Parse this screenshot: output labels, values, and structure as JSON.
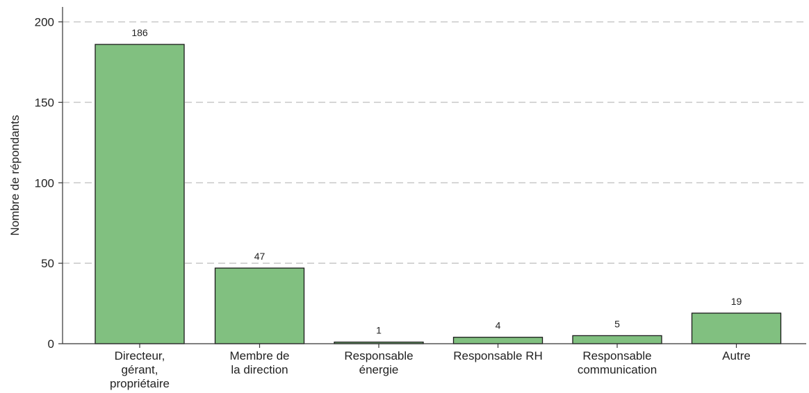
{
  "chart_data": {
    "type": "bar",
    "title": "",
    "xlabel": "",
    "ylabel": "Nombre de répondants",
    "ylim": [
      0,
      210
    ],
    "yticks": [
      0,
      50,
      100,
      150,
      200
    ],
    "grid": true,
    "bar_color": "#81c080",
    "categories": [
      [
        "Directeur,",
        "gérant,",
        "propriétaire"
      ],
      [
        "Membre de",
        "la direction"
      ],
      [
        "Responsable",
        "énergie"
      ],
      [
        "Responsable RH"
      ],
      [
        "Responsable",
        "communication"
      ],
      [
        "Autre"
      ]
    ],
    "values": [
      186,
      47,
      1,
      4,
      5,
      19
    ]
  }
}
